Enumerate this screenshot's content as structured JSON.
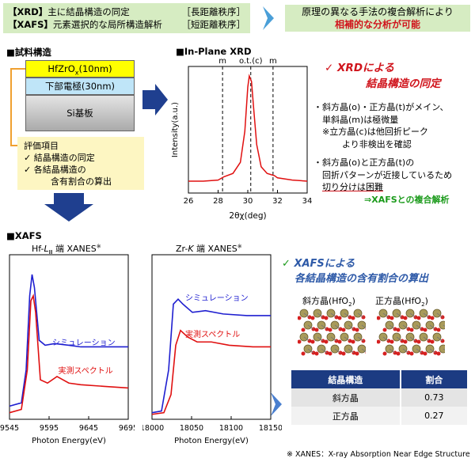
{
  "header": {
    "xrd_tag": "【XRD】",
    "xrd_desc": "主に結晶構造の同定",
    "xrd_range": "［長距離秩序］",
    "xafs_tag": "【XAFS】",
    "xafs_desc": "元素選択的な局所構造解析",
    "xafs_range": "［短距離秩序］",
    "right_line1": "原理の異なる手法の複合解析により",
    "right_line2": "相補的な分析が可能"
  },
  "sample": {
    "title": "■試料構造",
    "layers": [
      "HfZrOx(10nm)",
      "下部電極(30nm)",
      "Si基板"
    ],
    "layer_colors": [
      "#ffff00",
      "#bfe5f8",
      "#c8c8c8"
    ],
    "eval_title": "評価項目",
    "eval_items": [
      "結晶構造の同定",
      "各結晶構造の"
    ],
    "eval_item2_cont": "含有割合の算出"
  },
  "xrd": {
    "title": "■In-Plane XRD",
    "peak_labels": [
      "m",
      "o.t.(c)",
      "m"
    ],
    "chart_data": {
      "type": "line",
      "xlabel": "2θχ(deg)",
      "ylabel": "Intensity(a.u.)",
      "xlim": [
        26,
        34
      ],
      "xticks": [
        26,
        28,
        30,
        32,
        34
      ],
      "series": [
        {
          "x": [
            26,
            27,
            28,
            28.4,
            29,
            29.5,
            29.8,
            30,
            30.1,
            30.25,
            30.4,
            30.6,
            30.9,
            31.3,
            31.8,
            32,
            33,
            34
          ],
          "y": [
            0.05,
            0.05,
            0.06,
            0.09,
            0.12,
            0.22,
            0.5,
            0.9,
            1.0,
            0.95,
            0.7,
            0.38,
            0.18,
            0.12,
            0.1,
            0.08,
            0.06,
            0.05
          ]
        }
      ],
      "reflines": [
        28.3,
        30.2,
        31.7
      ]
    },
    "result_title": "XRDによる",
    "result_title2": "結晶構造の同定",
    "b1": "斜方晶(o)・正方晶(t)がメイン、",
    "b1b": "単斜晶(m)は極微量",
    "b1c": "※立方晶(c)は他回折ピーク",
    "b1d": "より非検出を確認",
    "b2": "斜方晶(o)と正方晶(t)の",
    "b2b": "回折パターンが近接しているため",
    "b2c": "切り分けは困難",
    "b2d": "⇒XAFSとの複合解析"
  },
  "xafs": {
    "title": "■XAFS",
    "hf_title": "Hf-LⅢ 端 XANES※",
    "zr_title": "Zr-K 端 XANES※",
    "sim_label": "シミュレーション",
    "exp_label": "実測スペクトル",
    "xlabel": "Photon Energy(eV)",
    "hf_xticks": [
      9545,
      9595,
      9645,
      9695
    ],
    "zr_xticks": [
      18000,
      18050,
      18100,
      18150
    ],
    "colors": {
      "sim": "#1f1fd0",
      "exp": "#e01010"
    },
    "result_title": "XAFSによる",
    "result_title2": "各結晶構造の含有割合の算出",
    "crystal1": "斜方晶(HfO2)",
    "crystal2": "正方晶(HfO2)",
    "table_headers": [
      "結晶構造",
      "割合"
    ],
    "table_rows": [
      [
        "斜方晶",
        "0.73"
      ],
      [
        "正方晶",
        "0.27"
      ]
    ],
    "footnote": "※ XANES：X-ray Absorption Near Edge Structure"
  }
}
